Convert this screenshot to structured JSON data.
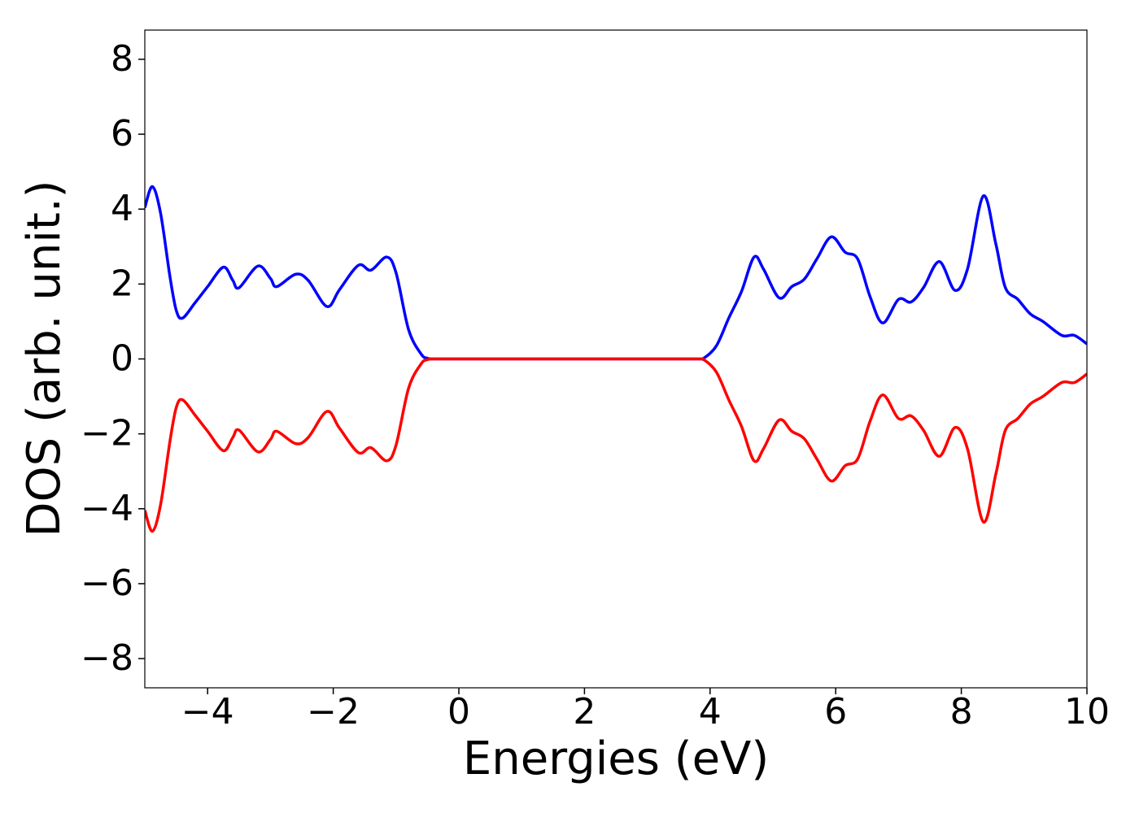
{
  "chart_data": {
    "type": "line",
    "xlabel": "Energies (eV)",
    "ylabel": "DOS (arb. unit.)",
    "x": [
      -5,
      -4.88,
      -4.75,
      -4.6,
      -4.5,
      -4.4,
      -4.2,
      -4,
      -3.75,
      -3.6,
      -3.5,
      -3.2,
      -3,
      -2.9,
      -2.6,
      -2.4,
      -2.1,
      -1.9,
      -1.6,
      -1.4,
      -1.15,
      -1,
      -0.8,
      -0.6,
      -0.5,
      -0.4,
      0,
      1,
      2,
      3,
      3.8,
      3.9,
      4.1,
      4.3,
      4.5,
      4.7,
      4.85,
      5.1,
      5.3,
      5.5,
      5.7,
      5.93,
      6.15,
      6.35,
      6.55,
      6.75,
      7,
      7.2,
      7.4,
      7.65,
      7.9,
      8.1,
      8.35,
      8.55,
      8.7,
      8.9,
      9.1,
      9.3,
      9.6,
      9.8,
      10
    ],
    "series": [
      {
        "color": "#0000ff",
        "values": [
          4.04,
          4.6,
          3.9,
          2.2,
          1.3,
          1.09,
          1.5,
          1.93,
          2.45,
          2.1,
          1.9,
          2.48,
          2.15,
          1.93,
          2.26,
          2.1,
          1.4,
          1.85,
          2.5,
          2.37,
          2.72,
          2.3,
          0.78,
          0.13,
          0.02,
          0,
          0,
          0,
          0,
          0,
          0,
          0.02,
          0.35,
          1.1,
          1.8,
          2.72,
          2.4,
          1.63,
          1.93,
          2.13,
          2.67,
          3.26,
          2.85,
          2.67,
          1.65,
          0.96,
          1.59,
          1.52,
          1.91,
          2.6,
          1.83,
          2.41,
          4.35,
          3.07,
          1.91,
          1.59,
          1.2,
          1.0,
          0.63,
          0.63,
          0.4
        ]
      },
      {
        "color": "#ff0000",
        "values": [
          -4.04,
          -4.6,
          -3.9,
          -2.2,
          -1.3,
          -1.09,
          -1.5,
          -1.93,
          -2.45,
          -2.1,
          -1.9,
          -2.48,
          -2.15,
          -1.93,
          -2.26,
          -2.1,
          -1.4,
          -1.85,
          -2.5,
          -2.37,
          -2.72,
          -2.3,
          -0.78,
          -0.13,
          -0.02,
          0,
          0,
          0,
          0,
          0,
          0,
          -0.02,
          -0.35,
          -1.1,
          -1.8,
          -2.72,
          -2.4,
          -1.63,
          -1.93,
          -2.13,
          -2.67,
          -3.26,
          -2.85,
          -2.67,
          -1.65,
          -0.96,
          -1.59,
          -1.52,
          -1.91,
          -2.6,
          -1.83,
          -2.41,
          -4.35,
          -3.07,
          -1.91,
          -1.59,
          -1.2,
          -1.0,
          -0.63,
          -0.63,
          -0.4
        ]
      }
    ],
    "xlim": [
      -5,
      10
    ],
    "xticks": [
      {
        "value": -4,
        "label": "−4"
      },
      {
        "value": -2,
        "label": "−2"
      },
      0,
      2,
      4,
      6,
      8,
      10
    ],
    "ylim": [
      -8.78,
      8.78
    ],
    "yticks": [
      {
        "value": -8,
        "label": "−8"
      },
      {
        "value": -6,
        "label": "−6"
      },
      {
        "value": -4,
        "label": "−4"
      },
      {
        "value": -2,
        "label": "−2"
      },
      0,
      2,
      4,
      6,
      8
    ],
    "grid": false
  }
}
